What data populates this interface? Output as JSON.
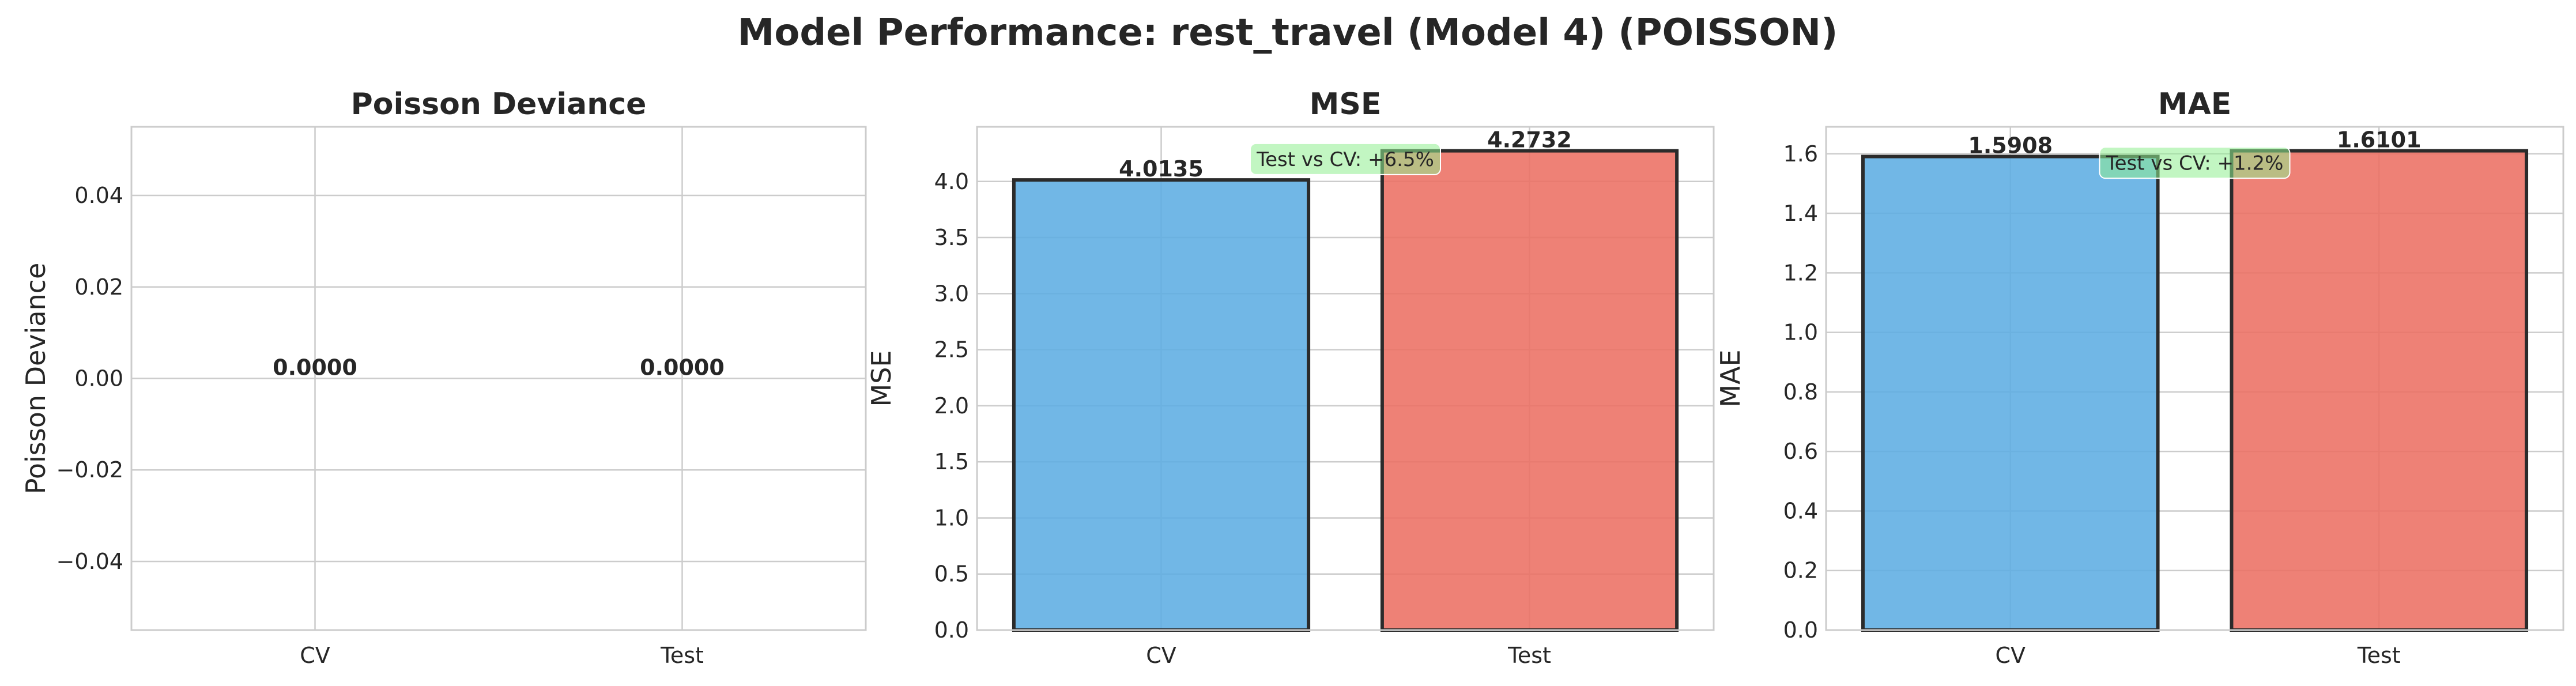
{
  "title": "Model Performance: rest_travel (Model 4) (POISSON)",
  "chart_data": [
    {
      "type": "bar",
      "title": "Poisson Deviance",
      "ylabel": "Poisson Deviance",
      "xlabel": "",
      "categories": [
        "CV",
        "Test"
      ],
      "values": [
        0.0,
        0.0
      ],
      "value_labels": [
        "0.0000",
        "0.0000"
      ],
      "colors": [
        "#5dade2",
        "#ec7063"
      ],
      "ylim": [
        -0.055,
        0.055
      ],
      "yticks": [
        -0.04,
        -0.02,
        0.0,
        0.02,
        0.04
      ],
      "ytick_labels": [
        "−0.04",
        "−0.02",
        "0.00",
        "0.02",
        "0.04"
      ],
      "grid": true,
      "annotation": null
    },
    {
      "type": "bar",
      "title": "MSE",
      "ylabel": "MSE",
      "xlabel": "",
      "categories": [
        "CV",
        "Test"
      ],
      "values": [
        4.0135,
        4.2732
      ],
      "value_labels": [
        "4.0135",
        "4.2732"
      ],
      "colors": [
        "#5dade2",
        "#ec7063"
      ],
      "ylim": [
        0,
        4.487
      ],
      "yticks": [
        0.0,
        0.5,
        1.0,
        1.5,
        2.0,
        2.5,
        3.0,
        3.5,
        4.0
      ],
      "ytick_labels": [
        "0.0",
        "0.5",
        "1.0",
        "1.5",
        "2.0",
        "2.5",
        "3.0",
        "3.5",
        "4.0"
      ],
      "grid": true,
      "annotation": {
        "text": "Test vs CV: +6.5%",
        "y": 4.2,
        "color": "#90ee90"
      }
    },
    {
      "type": "bar",
      "title": "MAE",
      "ylabel": "MAE",
      "xlabel": "",
      "categories": [
        "CV",
        "Test"
      ],
      "values": [
        1.5908,
        1.6101
      ],
      "value_labels": [
        "1.5908",
        "1.6101"
      ],
      "colors": [
        "#5dade2",
        "#ec7063"
      ],
      "ylim": [
        0,
        1.6906
      ],
      "yticks": [
        0.0,
        0.2,
        0.4,
        0.6,
        0.8,
        1.0,
        1.2,
        1.4,
        1.6
      ],
      "ytick_labels": [
        "0.0",
        "0.2",
        "0.4",
        "0.6",
        "0.8",
        "1.0",
        "1.2",
        "1.4",
        "1.6"
      ],
      "grid": true,
      "annotation": {
        "text": "Test vs CV: +1.2%",
        "y": 1.57,
        "color": "#90ee90"
      }
    }
  ]
}
